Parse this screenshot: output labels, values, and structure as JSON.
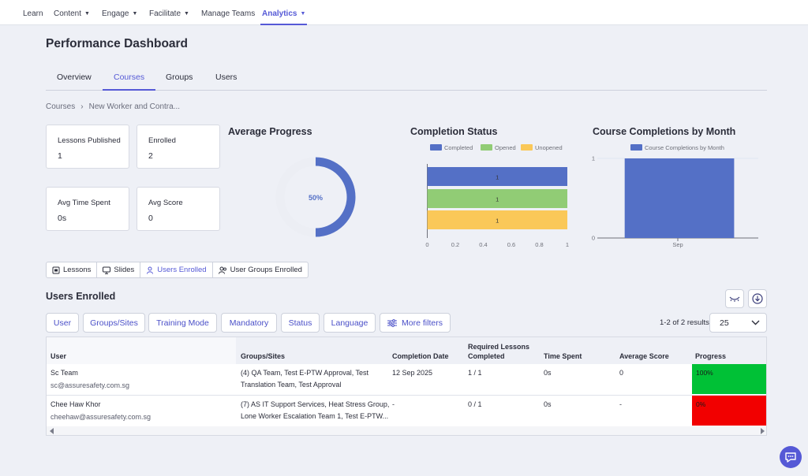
{
  "nav": {
    "items": [
      {
        "label": "Learn",
        "dropdown": false
      },
      {
        "label": "Content",
        "dropdown": true
      },
      {
        "label": "Engage",
        "dropdown": true
      },
      {
        "label": "Facilitate",
        "dropdown": true
      },
      {
        "label": "Manage Teams",
        "dropdown": false
      },
      {
        "label": "Analytics",
        "dropdown": true,
        "active": true
      }
    ]
  },
  "page_title": "Performance Dashboard",
  "tabs": [
    "Overview",
    "Courses",
    "Groups",
    "Users"
  ],
  "active_tab": "Courses",
  "breadcrumb": {
    "root": "Courses",
    "current": "New Worker and Contra..."
  },
  "stats": [
    {
      "label": "Lessons Published",
      "value": "1"
    },
    {
      "label": "Enrolled",
      "value": "2"
    },
    {
      "label": "Avg Time Spent",
      "value": "0s"
    },
    {
      "label": "Avg Score",
      "value": "0"
    }
  ],
  "average_progress": {
    "title": "Average Progress",
    "percent": 50,
    "label": "50%"
  },
  "completion_status": {
    "title": "Completion Status",
    "chart_data": {
      "type": "bar",
      "orientation": "horizontal",
      "categories": [
        "Completed",
        "Opened",
        "Unopened"
      ],
      "values": [
        1,
        1,
        1
      ],
      "legend": [
        "Completed",
        "Opened",
        "Unopened"
      ],
      "xticks": [
        "0",
        "0.2",
        "0.4",
        "0.6",
        "0.8",
        "1"
      ],
      "xlim": [
        0,
        1
      ],
      "colors": [
        "#5470c6",
        "#91cc75",
        "#fac858"
      ]
    }
  },
  "completions_by_month": {
    "title": "Course Completions by Month",
    "chart_data": {
      "type": "bar",
      "categories": [
        "Sep"
      ],
      "series": [
        {
          "name": "Course Completions by Month",
          "values": [
            1
          ]
        }
      ],
      "yticks": [
        "0",
        "1"
      ],
      "ylim": [
        0,
        1
      ],
      "color": "#5470c6"
    }
  },
  "subtabs": [
    {
      "label": "Lessons",
      "icon": "lessons-icon"
    },
    {
      "label": "Slides",
      "icon": "slides-icon"
    },
    {
      "label": "Users Enrolled",
      "icon": "user-icon",
      "active": true
    },
    {
      "label": "User Groups Enrolled",
      "icon": "user-group-icon"
    }
  ],
  "section_title": "Users Enrolled",
  "filters": [
    "User",
    "Groups/Sites",
    "Training Mode",
    "Mandatory",
    "Status",
    "Language",
    "More filters"
  ],
  "results_text": "1-2 of 2 results",
  "page_size": "25",
  "table": {
    "headers": {
      "user": "User",
      "groups": "Groups/Sites",
      "completion_date": "Completion Date",
      "required_lessons_1": "Required Lessons",
      "required_lessons_2": "Completed",
      "time_spent": "Time Spent",
      "average_score": "Average Score",
      "progress": "Progress"
    },
    "rows": [
      {
        "name": "Sc Team",
        "email": "sc@assuresafety.com.sg",
        "groups_1": "(4) QA Team, Test E-PTW Approval, Test",
        "groups_2": "Translation Team, Test Approval",
        "completion_date": "12 Sep 2025",
        "required": "1 / 1",
        "time_spent": "0s",
        "score": "0",
        "progress": "100%",
        "progress_color": "#00c136"
      },
      {
        "name": "Chee Haw Khor",
        "email": "cheehaw@assuresafety.com.sg",
        "groups_1": "(7) AS IT Support Services, Heat Stress Group,",
        "groups_2": "Lone Worker Escalation Team 1, Test E-PTW...",
        "completion_date": "-",
        "required": "0 / 1",
        "time_spent": "0s",
        "score": "-",
        "progress": "0%",
        "progress_color": "#f20000"
      }
    ]
  }
}
